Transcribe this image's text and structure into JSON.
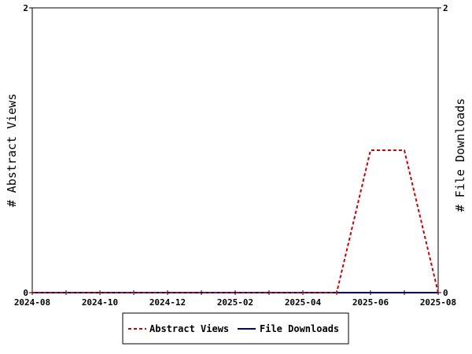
{
  "chart_data": {
    "type": "line",
    "x": [
      "2024-08",
      "2024-09",
      "2024-10",
      "2024-11",
      "2024-12",
      "2025-01",
      "2025-02",
      "2025-03",
      "2025-04",
      "2025-05",
      "2025-06",
      "2025-07",
      "2025-08"
    ],
    "x_tick_labels": [
      "2024-08",
      "2024-10",
      "2024-12",
      "2025-02",
      "2025-04",
      "2025-06",
      "2025-08"
    ],
    "left_axis": {
      "label": "# Abstract Views",
      "ylim": [
        0,
        2
      ],
      "tick_labels": [
        "0",
        "2"
      ]
    },
    "right_axis": {
      "label": "# File Downloads",
      "ylim": [
        0,
        2
      ],
      "tick_labels": [
        "0",
        "2"
      ]
    },
    "series": [
      {
        "name": "Abstract Views",
        "axis": "left",
        "style": "dashed",
        "color": "#cc0000",
        "values": [
          0,
          0,
          0,
          0,
          0,
          0,
          0,
          0,
          0,
          0,
          1,
          1,
          0
        ]
      },
      {
        "name": "File Downloads",
        "axis": "right",
        "style": "solid",
        "color": "#000099",
        "values": [
          0,
          0,
          0,
          0,
          0,
          0,
          0,
          0,
          0,
          0,
          0,
          0,
          0
        ]
      }
    ],
    "grid": false,
    "legend_position": "bottom-center"
  }
}
